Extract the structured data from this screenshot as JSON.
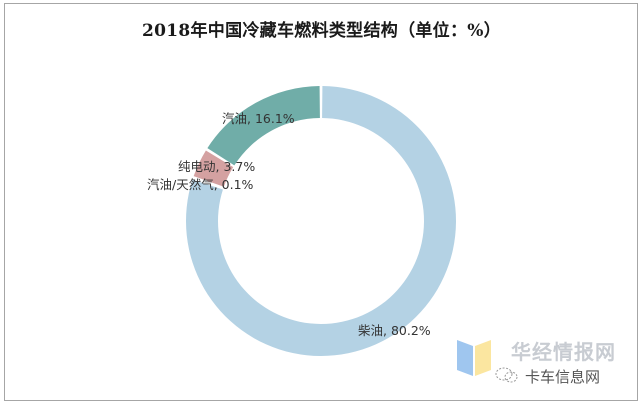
{
  "chart_data": {
    "type": "pie",
    "variant": "donut",
    "title": "2018年中国冷藏车燃料类型结构（单位：%）",
    "categories": [
      "柴油",
      "汽油",
      "纯电动",
      "汽油/天然气"
    ],
    "values": [
      80.2,
      16.1,
      3.7,
      0.1
    ],
    "unit": "%",
    "colors": [
      "#b4d2e4",
      "#70ada8",
      "#d4a1a1",
      "#8ab4d4"
    ],
    "labels": [
      "柴油, 80.2%",
      "汽油, 16.1%",
      "纯电动, 3.7%",
      "汽油/天然气, 0.1%"
    ],
    "legend": "none",
    "start_angle": "12 o'clock, clockwise"
  },
  "watermark": {
    "brand": "华经情报网",
    "source": "卡车信息网"
  }
}
